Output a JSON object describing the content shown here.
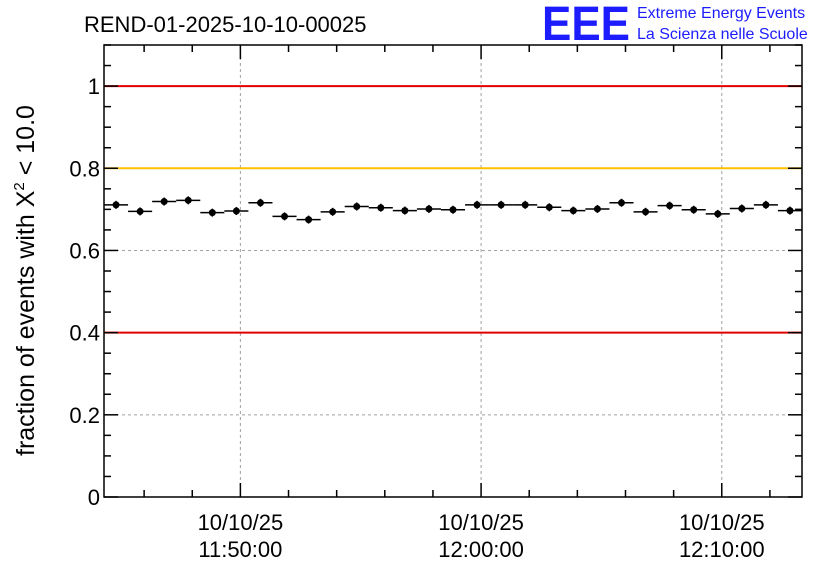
{
  "header": {
    "run_title": "REND-01-2025-10-10-00025",
    "logo_text": "EEE",
    "logo_line1": "Extreme Energy Events",
    "logo_line2": "La Scienza nelle Scuole"
  },
  "colors": {
    "upper_limit": "#e00000",
    "warning_level": "#ffc000",
    "lower_limit": "#e00000",
    "points": "#000000",
    "grid": "#a0a0a0",
    "logo": "#1c1cff"
  },
  "chart_data": {
    "type": "scatter",
    "title": "REND-01-2025-10-10-00025",
    "ylabel_prefix": "fraction of events with ",
    "ylabel_symbol": "X",
    "ylabel_exponent": "2",
    "ylabel_suffix": " < 10.0",
    "xlabel": "",
    "ylim": [
      0,
      1.1
    ],
    "xlim": [
      "11:44:20",
      "12:13:20"
    ],
    "yticks": [
      0,
      0.2,
      0.4,
      0.6,
      0.8,
      1
    ],
    "ytick_labels": [
      "0",
      "0.2",
      "0.4",
      "0.6",
      "0.8",
      "1"
    ],
    "xticks": [
      {
        "time": "11:50:00",
        "date_label": "10/10/25",
        "time_label": "11:50:00"
      },
      {
        "time": "12:00:00",
        "date_label": "10/10/25",
        "time_label": "12:00:00"
      },
      {
        "time": "12:10:00",
        "date_label": "10/10/25",
        "time_label": "12:10:00"
      }
    ],
    "grid": true,
    "reference_lines": [
      {
        "y": 1.0,
        "color": "#e00000"
      },
      {
        "y": 0.8,
        "color": "#ffc000"
      },
      {
        "y": 0.4,
        "color": "#e00000"
      }
    ],
    "x": [
      "11:44:50",
      "11:45:50",
      "11:46:50",
      "11:47:50",
      "11:48:50",
      "11:49:50",
      "11:50:50",
      "11:51:50",
      "11:52:50",
      "11:53:50",
      "11:54:50",
      "11:55:50",
      "11:56:50",
      "11:57:50",
      "11:58:50",
      "11:59:50",
      "12:00:50",
      "12:01:50",
      "12:02:50",
      "12:03:50",
      "12:04:50",
      "12:05:50",
      "12:06:50",
      "12:07:50",
      "12:08:50",
      "12:09:50",
      "12:10:50",
      "12:11:50",
      "12:12:50"
    ],
    "values": [
      0.711,
      0.695,
      0.719,
      0.722,
      0.692,
      0.696,
      0.716,
      0.683,
      0.675,
      0.694,
      0.707,
      0.704,
      0.697,
      0.701,
      0.699,
      0.711,
      0.711,
      0.711,
      0.705,
      0.697,
      0.701,
      0.716,
      0.694,
      0.709,
      0.699,
      0.689,
      0.702,
      0.711,
      0.697
    ]
  }
}
